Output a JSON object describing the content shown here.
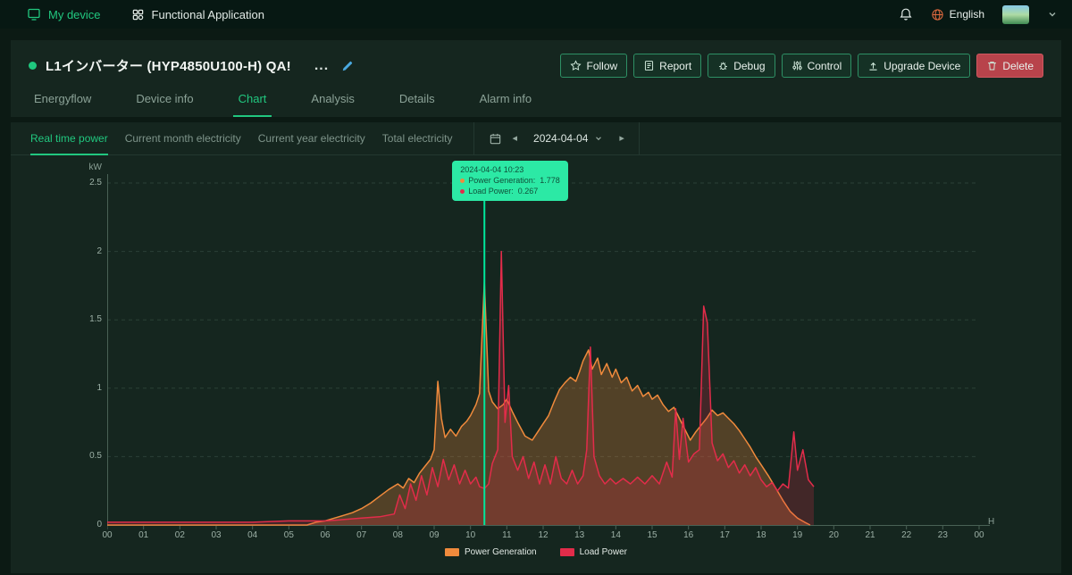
{
  "navbar": {
    "my_device": "My device",
    "functional_application": "Functional Application",
    "language": "English"
  },
  "device_header": {
    "title": "L1インバーター (HYP4850U100-H) QA!",
    "ellipsis": "...",
    "buttons": {
      "follow": "Follow",
      "report": "Report",
      "debug": "Debug",
      "control": "Control",
      "upgrade": "Upgrade Device",
      "delete": "Delete"
    }
  },
  "tabs": [
    {
      "label": "Energyflow"
    },
    {
      "label": "Device info"
    },
    {
      "label": "Chart"
    },
    {
      "label": "Analysis"
    },
    {
      "label": "Details"
    },
    {
      "label": "Alarm info"
    }
  ],
  "subtabs": [
    {
      "label": "Real time power"
    },
    {
      "label": "Current month electricity"
    },
    {
      "label": "Current year electricity"
    },
    {
      "label": "Total electricity"
    }
  ],
  "date_picker": {
    "date": "2024-04-04"
  },
  "icons": {
    "prev": "◂",
    "next": "▸"
  },
  "chart_data": {
    "type": "line",
    "title": "Real time power",
    "ylabel": "kW",
    "xlabel": "H",
    "ylim": [
      0,
      2.5
    ],
    "yticks": [
      0,
      0.5,
      1,
      1.5,
      2,
      2.5
    ],
    "ytick_labels": [
      "0",
      "0.5",
      "1",
      "1.5",
      "2",
      "2.5"
    ],
    "xtick_labels": [
      "00",
      "01",
      "02",
      "03",
      "04",
      "05",
      "06",
      "07",
      "08",
      "09",
      "10",
      "11",
      "12",
      "13",
      "14",
      "15",
      "16",
      "17",
      "18",
      "19",
      "20",
      "21",
      "22",
      "23",
      "00"
    ],
    "grid": "horizontal-dashed",
    "legend_position": "bottom-center",
    "tooltip": {
      "time": "2024-04-04 10:23",
      "time_hours": 10.383,
      "rows": [
        {
          "label": "Power Generation:",
          "value": "1.778",
          "color": "#f08a3c"
        },
        {
          "label": "Load Power:",
          "value": "0.267",
          "color": "#e22c4a"
        }
      ]
    },
    "series": [
      {
        "name": "Power Generation",
        "color": "#f08a3c",
        "fill": "rgba(240,138,60,0.28)",
        "points": [
          [
            0,
            0
          ],
          [
            5.5,
            0
          ],
          [
            5.75,
            0.02
          ],
          [
            6,
            0.03
          ],
          [
            6.25,
            0.05
          ],
          [
            6.5,
            0.07
          ],
          [
            6.75,
            0.09
          ],
          [
            7,
            0.12
          ],
          [
            7.25,
            0.16
          ],
          [
            7.5,
            0.21
          ],
          [
            7.75,
            0.26
          ],
          [
            8,
            0.3
          ],
          [
            8.15,
            0.27
          ],
          [
            8.3,
            0.34
          ],
          [
            8.45,
            0.31
          ],
          [
            8.6,
            0.38
          ],
          [
            8.75,
            0.43
          ],
          [
            8.9,
            0.48
          ],
          [
            9,
            0.55
          ],
          [
            9.1,
            1.05
          ],
          [
            9.2,
            0.78
          ],
          [
            9.3,
            0.64
          ],
          [
            9.45,
            0.7
          ],
          [
            9.6,
            0.65
          ],
          [
            9.75,
            0.72
          ],
          [
            9.9,
            0.76
          ],
          [
            10,
            0.8
          ],
          [
            10.15,
            0.88
          ],
          [
            10.25,
            0.96
          ],
          [
            10.383,
            1.778
          ],
          [
            10.5,
            0.98
          ],
          [
            10.6,
            0.9
          ],
          [
            10.75,
            0.85
          ],
          [
            10.9,
            0.88
          ],
          [
            11,
            0.92
          ],
          [
            11.15,
            0.83
          ],
          [
            11.3,
            0.75
          ],
          [
            11.5,
            0.65
          ],
          [
            11.7,
            0.62
          ],
          [
            11.85,
            0.68
          ],
          [
            12,
            0.74
          ],
          [
            12.15,
            0.8
          ],
          [
            12.3,
            0.9
          ],
          [
            12.45,
            0.99
          ],
          [
            12.6,
            1.04
          ],
          [
            12.75,
            1.08
          ],
          [
            12.9,
            1.05
          ],
          [
            13,
            1.12
          ],
          [
            13.1,
            1.2
          ],
          [
            13.25,
            1.28
          ],
          [
            13.35,
            1.14
          ],
          [
            13.5,
            1.22
          ],
          [
            13.6,
            1.1
          ],
          [
            13.75,
            1.18
          ],
          [
            13.9,
            1.08
          ],
          [
            14,
            1.14
          ],
          [
            14.15,
            1.04
          ],
          [
            14.3,
            1.08
          ],
          [
            14.45,
            0.98
          ],
          [
            14.6,
            1.02
          ],
          [
            14.75,
            0.94
          ],
          [
            14.9,
            0.97
          ],
          [
            15,
            0.92
          ],
          [
            15.15,
            0.95
          ],
          [
            15.3,
            0.88
          ],
          [
            15.45,
            0.83
          ],
          [
            15.6,
            0.86
          ],
          [
            15.75,
            0.78
          ],
          [
            15.9,
            0.7
          ],
          [
            16.05,
            0.62
          ],
          [
            16.2,
            0.68
          ],
          [
            16.35,
            0.73
          ],
          [
            16.5,
            0.78
          ],
          [
            16.65,
            0.84
          ],
          [
            16.8,
            0.8
          ],
          [
            16.95,
            0.82
          ],
          [
            17.1,
            0.78
          ],
          [
            17.25,
            0.74
          ],
          [
            17.4,
            0.69
          ],
          [
            17.55,
            0.63
          ],
          [
            17.7,
            0.57
          ],
          [
            17.85,
            0.5
          ],
          [
            18,
            0.44
          ],
          [
            18.2,
            0.36
          ],
          [
            18.4,
            0.27
          ],
          [
            18.6,
            0.18
          ],
          [
            18.8,
            0.1
          ],
          [
            19,
            0.05
          ],
          [
            19.2,
            0.02
          ],
          [
            19.35,
            0
          ]
        ]
      },
      {
        "name": "Load Power",
        "color": "#e22c4a",
        "fill": "rgba(226,44,74,0.22)",
        "points": [
          [
            0,
            0.02
          ],
          [
            2,
            0.02
          ],
          [
            4,
            0.02
          ],
          [
            5,
            0.03
          ],
          [
            6,
            0.03
          ],
          [
            6.5,
            0.04
          ],
          [
            7,
            0.05
          ],
          [
            7.5,
            0.06
          ],
          [
            7.9,
            0.08
          ],
          [
            8.05,
            0.22
          ],
          [
            8.2,
            0.12
          ],
          [
            8.35,
            0.3
          ],
          [
            8.5,
            0.18
          ],
          [
            8.65,
            0.36
          ],
          [
            8.8,
            0.22
          ],
          [
            8.95,
            0.42
          ],
          [
            9.1,
            0.28
          ],
          [
            9.25,
            0.48
          ],
          [
            9.4,
            0.33
          ],
          [
            9.55,
            0.44
          ],
          [
            9.7,
            0.3
          ],
          [
            9.85,
            0.4
          ],
          [
            10,
            0.3
          ],
          [
            10.15,
            0.35
          ],
          [
            10.25,
            0.28
          ],
          [
            10.383,
            0.267
          ],
          [
            10.5,
            0.3
          ],
          [
            10.6,
            0.45
          ],
          [
            10.75,
            0.55
          ],
          [
            10.85,
            2.0
          ],
          [
            10.95,
            0.75
          ],
          [
            11.05,
            1.02
          ],
          [
            11.15,
            0.5
          ],
          [
            11.3,
            0.4
          ],
          [
            11.45,
            0.5
          ],
          [
            11.6,
            0.34
          ],
          [
            11.75,
            0.46
          ],
          [
            11.9,
            0.3
          ],
          [
            12.05,
            0.44
          ],
          [
            12.2,
            0.3
          ],
          [
            12.35,
            0.5
          ],
          [
            12.5,
            0.34
          ],
          [
            12.65,
            0.3
          ],
          [
            12.8,
            0.4
          ],
          [
            12.95,
            0.3
          ],
          [
            13.1,
            0.36
          ],
          [
            13.2,
            0.55
          ],
          [
            13.3,
            1.3
          ],
          [
            13.4,
            0.5
          ],
          [
            13.55,
            0.36
          ],
          [
            13.7,
            0.3
          ],
          [
            13.85,
            0.34
          ],
          [
            14,
            0.3
          ],
          [
            14.2,
            0.34
          ],
          [
            14.4,
            0.3
          ],
          [
            14.6,
            0.35
          ],
          [
            14.8,
            0.3
          ],
          [
            15,
            0.36
          ],
          [
            15.2,
            0.3
          ],
          [
            15.4,
            0.46
          ],
          [
            15.55,
            0.35
          ],
          [
            15.65,
            0.85
          ],
          [
            15.75,
            0.48
          ],
          [
            15.85,
            0.78
          ],
          [
            16,
            0.46
          ],
          [
            16.15,
            0.52
          ],
          [
            16.3,
            0.55
          ],
          [
            16.42,
            1.6
          ],
          [
            16.52,
            1.48
          ],
          [
            16.65,
            0.6
          ],
          [
            16.8,
            0.47
          ],
          [
            16.95,
            0.52
          ],
          [
            17.1,
            0.42
          ],
          [
            17.25,
            0.47
          ],
          [
            17.4,
            0.38
          ],
          [
            17.55,
            0.44
          ],
          [
            17.7,
            0.36
          ],
          [
            17.85,
            0.42
          ],
          [
            18,
            0.33
          ],
          [
            18.15,
            0.28
          ],
          [
            18.3,
            0.31
          ],
          [
            18.45,
            0.25
          ],
          [
            18.6,
            0.3
          ],
          [
            18.75,
            0.27
          ],
          [
            18.9,
            0.68
          ],
          [
            19,
            0.4
          ],
          [
            19.15,
            0.55
          ],
          [
            19.3,
            0.33
          ],
          [
            19.45,
            0.28
          ]
        ]
      }
    ]
  }
}
